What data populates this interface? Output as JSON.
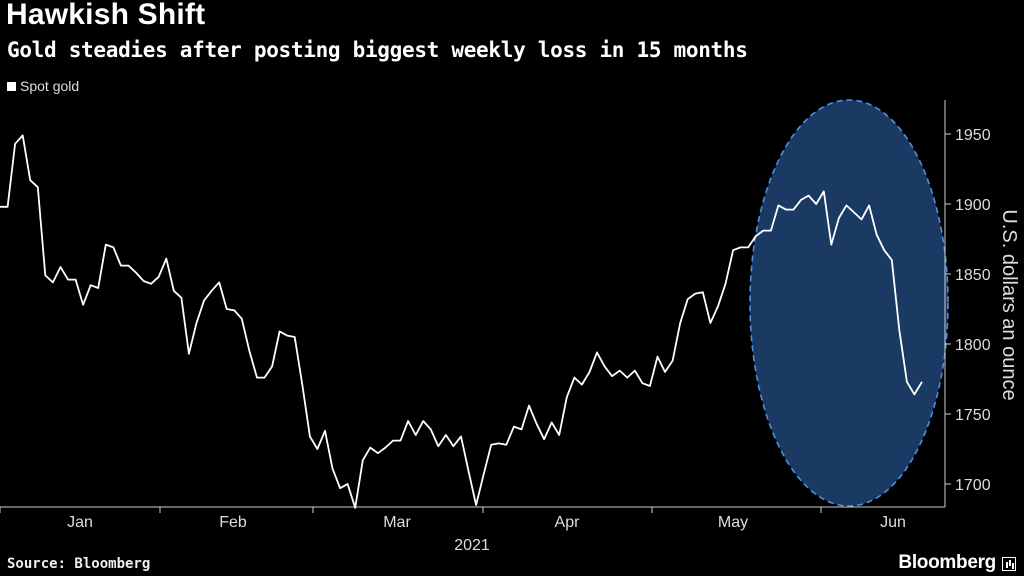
{
  "chart_data": {
    "type": "line",
    "title": "Hawkish Shift",
    "subtitle": "Gold steadies after posting biggest weekly loss in 15 months",
    "legend": [
      "Spot gold"
    ],
    "legend_position": "top-left",
    "ylabel": "U.S. dollars an ounce",
    "xlabel": "2021",
    "y_ticks": [
      1700,
      1750,
      1800,
      1850,
      1900,
      1950
    ],
    "ylim": [
      1668,
      1975
    ],
    "x_tick_labels": [
      "Jan",
      "Feb",
      "Mar",
      "Apr",
      "May",
      "Jun"
    ],
    "grid": false,
    "highlight": {
      "shape": "ellipse",
      "color": "#1b3a63",
      "border": "#4a90e2",
      "start_index": 110
    },
    "series": [
      {
        "name": "Spot gold",
        "color": "#ffffff",
        "values": [
          1898,
          1898,
          1943,
          1949,
          1917,
          1912,
          1849,
          1844,
          1855,
          1846,
          1846,
          1828,
          1842,
          1840,
          1871,
          1869,
          1856,
          1856,
          1851,
          1845,
          1843,
          1848,
          1861,
          1838,
          1833,
          1793,
          1815,
          1831,
          1838,
          1844,
          1825,
          1824,
          1818,
          1795,
          1776,
          1776,
          1784,
          1809,
          1806,
          1805,
          1771,
          1734,
          1725,
          1738,
          1711,
          1697,
          1700,
          1683,
          1717,
          1726,
          1722,
          1726,
          1731,
          1731,
          1745,
          1735,
          1745,
          1739,
          1727,
          1735,
          1727,
          1734,
          1709,
          1685,
          1707,
          1728,
          1729,
          1728,
          1741,
          1739,
          1756,
          1743,
          1732,
          1744,
          1735,
          1762,
          1776,
          1771,
          1780,
          1794,
          1784,
          1777,
          1781,
          1776,
          1781,
          1772,
          1770,
          1791,
          1780,
          1788,
          1815,
          1832,
          1836,
          1837,
          1815,
          1827,
          1843,
          1867,
          1869,
          1869,
          1877,
          1881,
          1881,
          1899,
          1896,
          1896,
          1903,
          1906,
          1900,
          1909,
          1871,
          1890,
          1899,
          1894,
          1889,
          1899,
          1878,
          1867,
          1860,
          1810,
          1773,
          1764,
          1773
        ]
      }
    ]
  }
}
